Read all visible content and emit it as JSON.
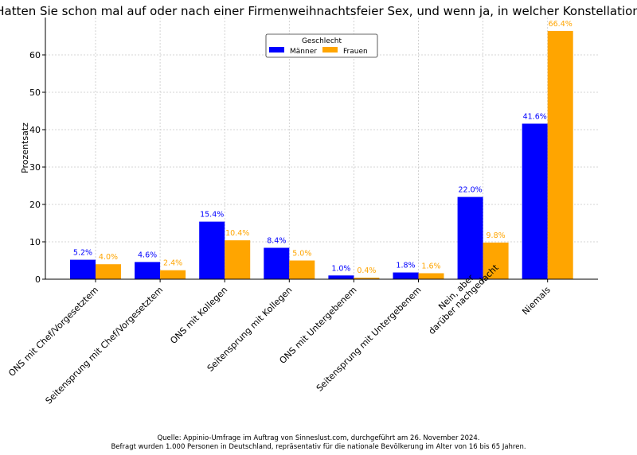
{
  "chart_data": {
    "type": "bar",
    "title": "Hatten Sie schon mal auf oder nach einer Firmenweihnachtsfeier Sex, und wenn ja, in welcher Konstellation?",
    "xlabel": "",
    "ylabel": "Prozentsatz",
    "ylim": [
      0,
      70
    ],
    "yticks": [
      0,
      10,
      20,
      30,
      40,
      50,
      60
    ],
    "grid": true,
    "legend": {
      "title": "Geschlecht",
      "placement": "top-center"
    },
    "categories": [
      "ONS mit Chef/Vorgesetztem",
      "Seitensprung mit Chef/Vorgesetztem",
      "ONS mit Kollegen",
      "Seitensprung mit Kollegen",
      "ONS mit Untergebenem",
      "Seitensprung mit Untergebenem",
      "Nein, aber\ndarüber nachgedacht",
      "Niemals"
    ],
    "series": [
      {
        "name": "Männer",
        "color": "#0000ff",
        "values": [
          5.2,
          4.6,
          15.4,
          8.4,
          1.0,
          1.8,
          22.0,
          41.6
        ]
      },
      {
        "name": "Frauen",
        "color": "#ffa500",
        "values": [
          4.0,
          2.4,
          10.4,
          5.0,
          0.4,
          1.6,
          9.8,
          66.4
        ]
      }
    ]
  },
  "footer": {
    "line1": "Quelle: Appinio-Umfrage im Auftrag von Sinneslust.com, durchgeführt am 26. November 2024.",
    "line2": "Befragt wurden 1.000 Personen in Deutschland, repräsentativ für die nationale Bevölkerung im Alter von 16 bis 65 Jahren."
  }
}
